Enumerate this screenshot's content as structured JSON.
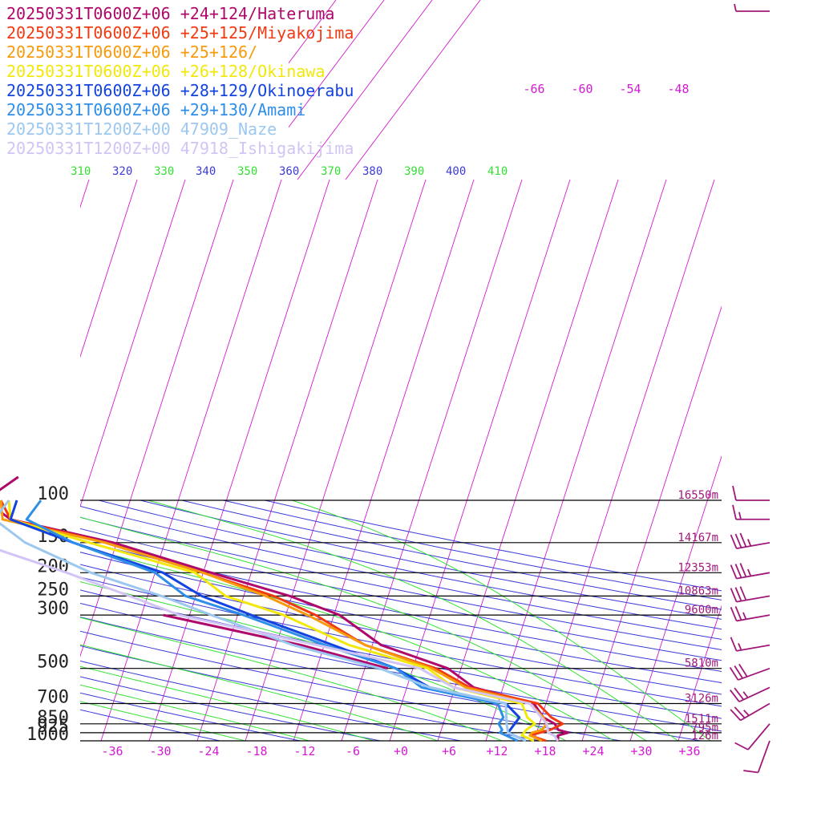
{
  "chart_data": {
    "type": "line",
    "title": "",
    "xlabel": "",
    "ylabel": "",
    "legend": [
      {
        "label": "20250331T0600Z+06 +24+124/Hateruma",
        "color": "#b0086a"
      },
      {
        "label": "20250331T0600Z+06 +25+125/Miyakojima",
        "color": "#f23a12"
      },
      {
        "label": "20250331T0600Z+06 +25+126/",
        "color": "#f79a0c"
      },
      {
        "label": "20250331T0600Z+06 +26+128/Okinawa",
        "color": "#f2e80c"
      },
      {
        "label": "20250331T0600Z+06 +28+129/Okinoerabu",
        "color": "#1444e0"
      },
      {
        "label": "20250331T0600Z+06 +29+130/Amami",
        "color": "#2e8ee8"
      },
      {
        "label": "20250331T1200Z+00 47909_Naze",
        "color": "#9cc8f0"
      },
      {
        "label": "20250331T1200Z+00 47918_Ishigakijima",
        "color": "#d2c4f4"
      }
    ],
    "pressure_levels": [
      {
        "p": 100,
        "label": "100",
        "height": "16550m"
      },
      {
        "p": 150,
        "label": "150",
        "height": "14167m"
      },
      {
        "p": 200,
        "label": "200",
        "height": "12353m"
      },
      {
        "p": 250,
        "label": "250",
        "height": "10863m"
      },
      {
        "p": 300,
        "label": "300",
        "height": "9600m"
      },
      {
        "p": 500,
        "label": "500",
        "height": "5810m"
      },
      {
        "p": 700,
        "label": "700",
        "height": "3126m"
      },
      {
        "p": 850,
        "label": "850",
        "height": "1511m"
      },
      {
        "p": 925,
        "label": "925",
        "height": "795m"
      },
      {
        "p": 1000,
        "label": "1000",
        "height": "126m"
      }
    ],
    "x_ticks": [
      "-36",
      "-30",
      "-24",
      "-18",
      "-12",
      "-6",
      "+0",
      "+6",
      "+12",
      "+18",
      "+24",
      "+30",
      "+36"
    ],
    "theta_labels": [
      "310",
      "320",
      "330",
      "340",
      "350",
      "360",
      "370",
      "380",
      "390",
      "400",
      "410"
    ],
    "upper_isotherm_labels": [
      "-66",
      "-60",
      "-54",
      "-48"
    ],
    "colors": {
      "isotherm": "#d21bd2",
      "dry_adiabat": "#3b3bd9",
      "moist_adiabat": "#34e034",
      "isobar": "#000000",
      "height_label": "#a0187a",
      "wind_barb": "#a0187a"
    },
    "series": [
      {
        "name": "20250331T0600Z+06 +24+124/Hateruma",
        "color": "#b0086a",
        "points": [
          [
            1000,
            19
          ],
          [
            950,
            18.5
          ],
          [
            925,
            19.5
          ],
          [
            900,
            18
          ],
          [
            850,
            17
          ],
          [
            800,
            15
          ],
          [
            700,
            12.5
          ],
          [
            600,
            3.5
          ],
          [
            500,
            -1.5
          ],
          [
            400,
            -12
          ],
          [
            300,
            -20
          ],
          [
            250,
            -28
          ],
          [
            200,
            -40
          ],
          [
            150,
            -55
          ],
          [
            120,
            -70
          ],
          [
            100,
            -75
          ],
          [
            80,
            -73
          ]
        ],
        "dewpoints": [
          [
            500,
            -9
          ],
          [
            400,
            -22
          ],
          [
            300,
            -42
          ]
        ]
      },
      {
        "name": "20250331T0600Z+06 +25+125/Miyakojima",
        "color": "#f23a12",
        "points": [
          [
            1000,
            17.5
          ],
          [
            950,
            15
          ],
          [
            925,
            16
          ],
          [
            900,
            17
          ],
          [
            850,
            18
          ],
          [
            800,
            16
          ],
          [
            700,
            13
          ],
          [
            600,
            3
          ],
          [
            500,
            -3
          ],
          [
            400,
            -14
          ],
          [
            300,
            -23
          ],
          [
            250,
            -30
          ],
          [
            200,
            -41
          ],
          [
            150,
            -56
          ],
          [
            120,
            -70
          ],
          [
            100,
            -73
          ]
        ]
      },
      {
        "name": "20250331T0600Z+06 +25+126/",
        "color": "#f79a0c",
        "points": [
          [
            1000,
            17
          ],
          [
            950,
            15
          ],
          [
            925,
            15
          ],
          [
            900,
            16
          ],
          [
            850,
            16
          ],
          [
            800,
            15
          ],
          [
            700,
            12
          ],
          [
            600,
            2.5
          ],
          [
            500,
            -3.5
          ],
          [
            400,
            -14
          ],
          [
            300,
            -24
          ],
          [
            250,
            -31
          ],
          [
            200,
            -41
          ],
          [
            150,
            -56
          ],
          [
            120,
            -71
          ],
          [
            100,
            -73
          ]
        ]
      },
      {
        "name": "20250331T0600Z+06 +26+128/Okinawa",
        "color": "#f2e80c",
        "points": [
          [
            1000,
            16
          ],
          [
            950,
            14
          ],
          [
            925,
            14
          ],
          [
            900,
            14
          ],
          [
            850,
            14.5
          ],
          [
            800,
            13
          ],
          [
            700,
            11
          ],
          [
            600,
            1
          ],
          [
            500,
            -4
          ],
          [
            400,
            -16
          ],
          [
            300,
            -27
          ],
          [
            250,
            -36
          ],
          [
            200,
            -42
          ],
          [
            150,
            -58
          ],
          [
            120,
            -70
          ],
          [
            100,
            -72
          ]
        ]
      },
      {
        "name": "20250331T0600Z+06 +28+129/Okinoerabu",
        "color": "#1444e0",
        "points": [
          [
            1000,
            15
          ],
          [
            950,
            13
          ],
          [
            925,
            12
          ],
          [
            900,
            12
          ],
          [
            850,
            12
          ],
          [
            800,
            12
          ],
          [
            700,
            9
          ],
          [
            600,
            -2
          ],
          [
            500,
            -8
          ],
          [
            400,
            -18
          ],
          [
            300,
            -31
          ],
          [
            250,
            -39
          ],
          [
            200,
            -46
          ],
          [
            150,
            -60
          ],
          [
            120,
            -70
          ],
          [
            100,
            -71
          ]
        ]
      },
      {
        "name": "20250331T0600Z+06 +29+130/Amami",
        "color": "#2e8ee8",
        "points": [
          [
            1000,
            14
          ],
          [
            950,
            12
          ],
          [
            925,
            11
          ],
          [
            900,
            11
          ],
          [
            850,
            10
          ],
          [
            800,
            10
          ],
          [
            700,
            8
          ],
          [
            600,
            -3
          ],
          [
            500,
            -8
          ],
          [
            400,
            -19
          ],
          [
            300,
            -32
          ],
          [
            250,
            -41
          ],
          [
            200,
            -47
          ],
          [
            150,
            -60
          ],
          [
            120,
            -68
          ],
          [
            100,
            -68
          ]
        ]
      },
      {
        "name": "20250331T1200Z+00 47909_Naze",
        "color": "#9cc8f0",
        "points": [
          [
            1000,
            15
          ],
          [
            950,
            13
          ],
          [
            925,
            12
          ],
          [
            850,
            11
          ],
          [
            700,
            9
          ],
          [
            600,
            -2
          ],
          [
            500,
            -10
          ],
          [
            400,
            -23
          ],
          [
            300,
            -36
          ],
          [
            250,
            -44
          ],
          [
            200,
            -55
          ],
          [
            150,
            -66
          ],
          [
            120,
            -72
          ],
          [
            100,
            -72
          ]
        ]
      },
      {
        "name": "20250331T1200Z+00 47918_Ishigakijima",
        "color": "#d2c4f4",
        "points": [
          [
            1000,
            19
          ],
          [
            950,
            18
          ],
          [
            925,
            17
          ],
          [
            850,
            16
          ],
          [
            700,
            12
          ],
          [
            600,
            1
          ],
          [
            500,
            -5
          ],
          [
            400,
            -20
          ],
          [
            300,
            -40
          ],
          [
            250,
            -48
          ],
          [
            200,
            -58
          ],
          [
            150,
            -72
          ],
          [
            120,
            -82
          ],
          [
            100,
            -82
          ]
        ]
      }
    ],
    "winds": [
      {
        "p": 70,
        "speed": 5,
        "dir": 270
      },
      {
        "p": 100,
        "speed": 10,
        "dir": 270
      },
      {
        "p": 120,
        "speed": 15,
        "dir": 270
      },
      {
        "p": 150,
        "speed": 35,
        "dir": 260
      },
      {
        "p": 200,
        "speed": 35,
        "dir": 260
      },
      {
        "p": 250,
        "speed": 30,
        "dir": 260
      },
      {
        "p": 300,
        "speed": 25,
        "dir": 260
      },
      {
        "p": 400,
        "speed": 15,
        "dir": 260
      },
      {
        "p": 500,
        "speed": 30,
        "dir": 250
      },
      {
        "p": 600,
        "speed": 25,
        "dir": 245
      },
      {
        "p": 700,
        "speed": 25,
        "dir": 240
      },
      {
        "p": 850,
        "speed": 10,
        "dir": 220
      },
      {
        "p": 1000,
        "speed": 10,
        "dir": 200
      }
    ]
  }
}
